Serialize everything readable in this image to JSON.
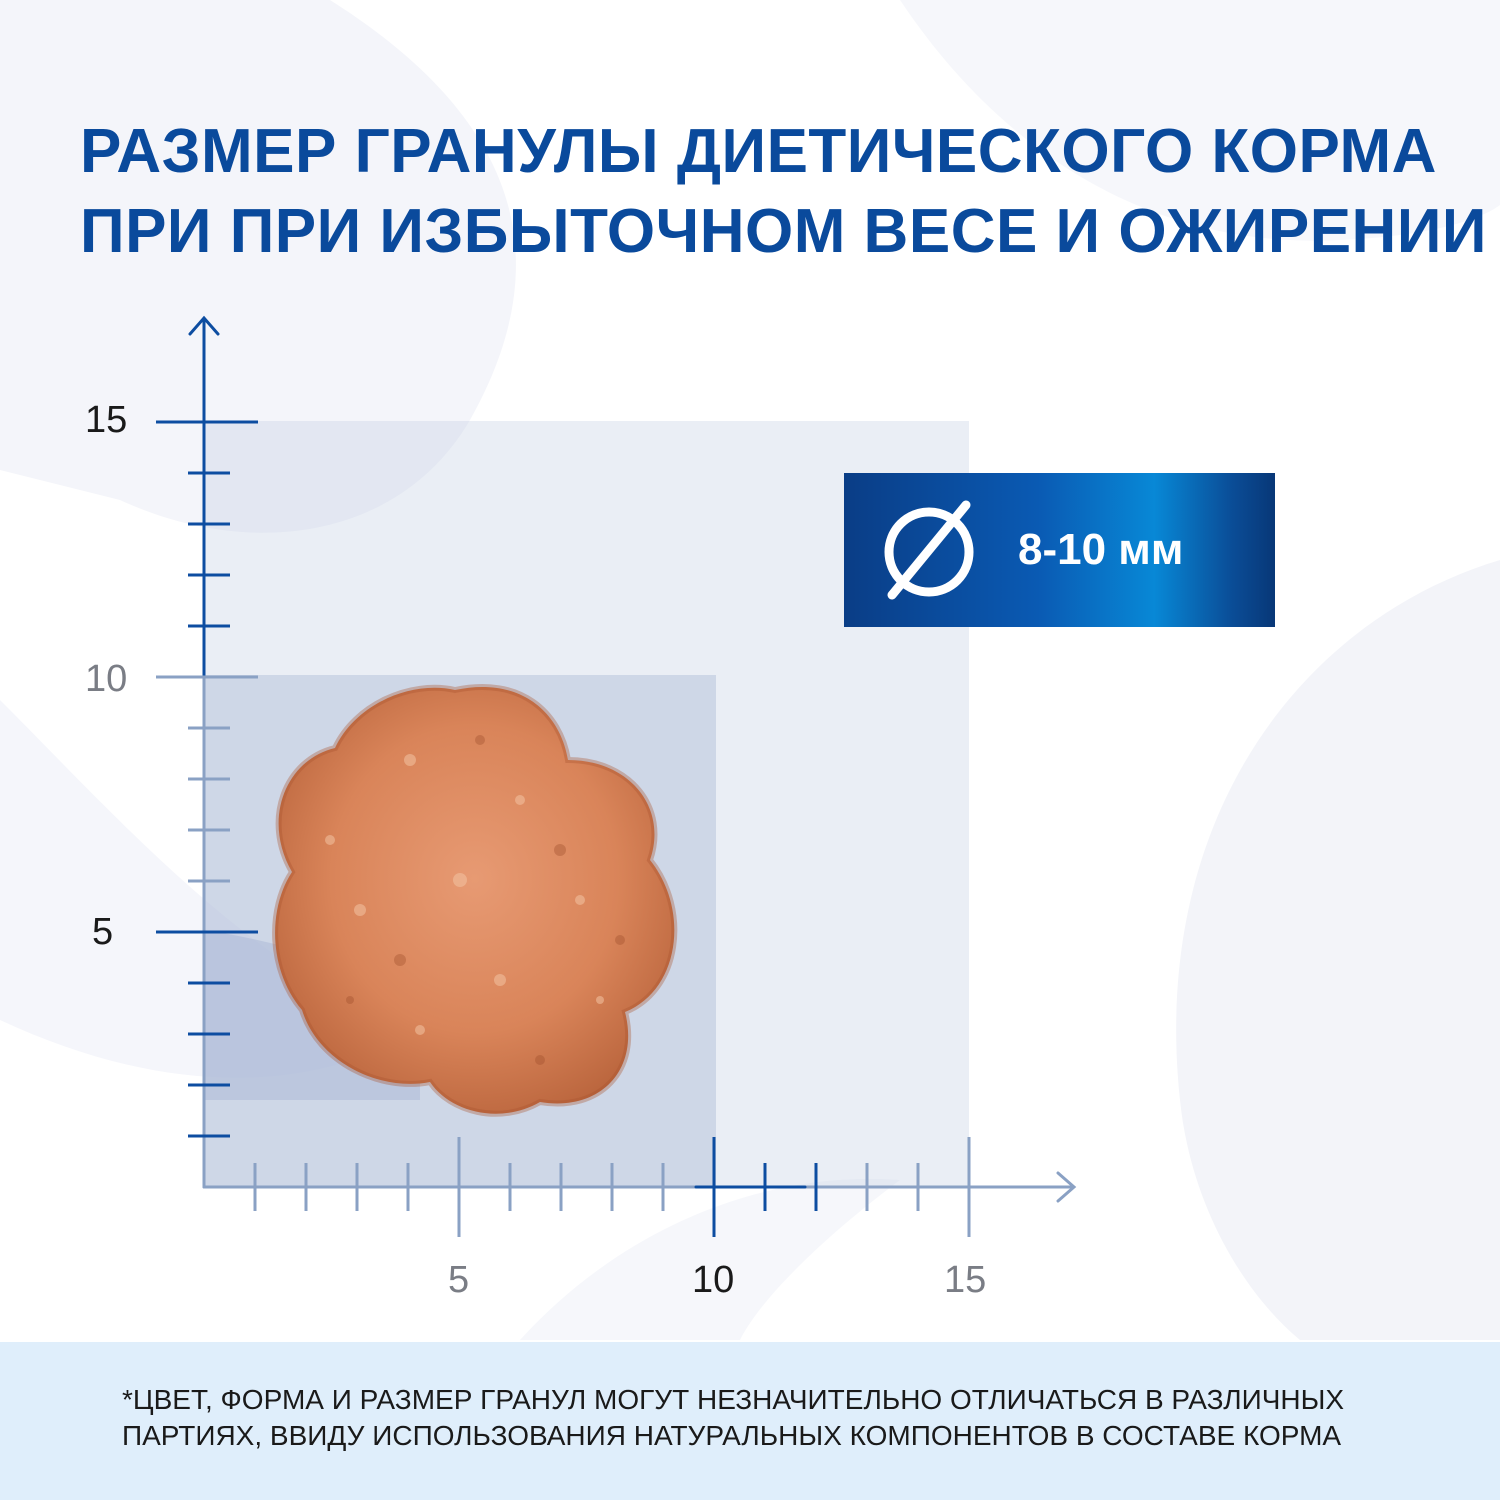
{
  "title": {
    "line1": "РАЗМЕР ГРАНУЛЫ ДИЕТИЧЕСКОГО КОРМА",
    "line2": "ПРИ ПРИ ИЗБЫТОЧНОМ ВЕСЕ И ОЖИРЕНИИ"
  },
  "badge": {
    "icon": "diameter-icon",
    "value": "8-10 мм"
  },
  "scale": {
    "x_ticks": [
      "5",
      "10",
      "15"
    ],
    "y_ticks": [
      "15",
      "10",
      "5"
    ],
    "unit_squares": [
      10,
      15
    ],
    "granule_size": {
      "min": 8,
      "max": 10
    }
  },
  "footnote": {
    "line1": "*ЦВЕТ, ФОРМА И РАЗМЕР ГРАНУЛ МОГУТ НЕЗНАЧИТЕЛЬНО ОТЛИЧАТЬСЯ  В РАЗЛИЧНЫХ",
    "line2": "ПАРТИЯХ, ВВИДУ ИСПОЛЬЗОВАНИЯ НАТУРАЛЬНЫХ КОМПОНЕНТОВ В СОСТАВЕ  КОРМА"
  },
  "colors": {
    "brand_blue": "#0a4a9c",
    "axis": "#8aa1c4",
    "granule": "#d8835a",
    "footer_bg": "#dfeefb"
  }
}
